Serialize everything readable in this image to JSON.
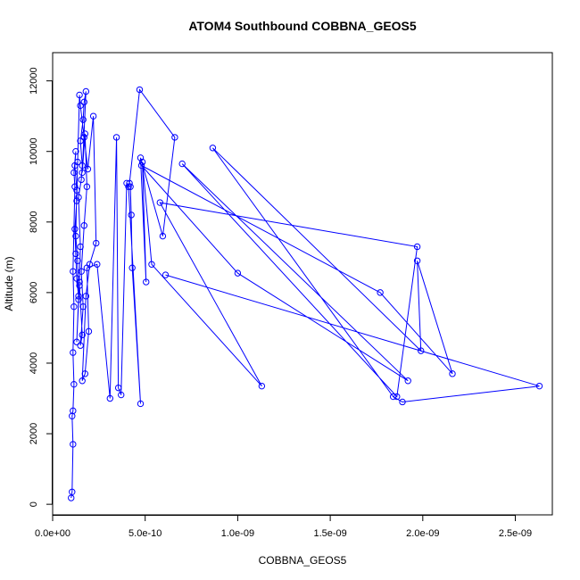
{
  "chart_data": {
    "type": "line",
    "title": "ATOM4 Southbound COBBNA_GEOS5",
    "xlabel": "COBBNA_GEOS5",
    "ylabel": "Altitude (m)",
    "xlim": [
      0,
      2.7e-09
    ],
    "ylim": [
      -300,
      12800
    ],
    "xticks": [
      0,
      5e-10,
      1e-09,
      1.5e-09,
      2e-09,
      2.5e-09
    ],
    "xtick_labels": [
      "0.0e+00",
      "5.0e-10",
      "1.0e-09",
      "1.5e-09",
      "2.0e-09",
      "2.5e-09"
    ],
    "yticks": [
      0,
      2000,
      4000,
      6000,
      8000,
      10000,
      12000
    ],
    "ytick_labels": [
      "0",
      "2000",
      "4000",
      "6000",
      "8000",
      "10000",
      "12000"
    ],
    "grid": false,
    "series_color": "#0000ff",
    "x": [
      1e-10,
      1.05e-10,
      1.1e-10,
      1.05e-10,
      1.1e-10,
      1.15e-10,
      1.1e-10,
      1.15e-10,
      1.1e-10,
      1.2e-10,
      1.15e-10,
      1.25e-10,
      1.2e-10,
      1.3e-10,
      1.25e-10,
      1.35e-10,
      1.4e-10,
      1.3e-10,
      1.45e-10,
      1.5e-10,
      1.4e-10,
      1.55e-10,
      1.6e-10,
      1.5e-10,
      1.65e-10,
      1.7e-10,
      1.8e-10,
      1.6e-10,
      1.75e-10,
      1.85e-10,
      1.7e-10,
      1.55e-10,
      1.65e-10,
      1.5e-10,
      1.6e-10,
      1.45e-10,
      1.4e-10,
      1.3e-10,
      1.25e-10,
      1.2e-10,
      1.3e-10,
      1.35e-10,
      1.45e-10,
      1.5e-10,
      1.7e-10,
      1.9e-10,
      2.2e-10,
      2.35e-10,
      2e-10,
      1.8e-10,
      1.6e-10,
      1.75e-10,
      1.95e-10,
      1.85e-10,
      2.4e-10,
      3.1e-10,
      3.45e-10,
      3.55e-10,
      3.7e-10,
      4e-10,
      4.2e-10,
      4.25e-10,
      4.3e-10,
      4.75e-10,
      4.1e-10,
      4.15e-10,
      4.7e-10,
      6.6e-10,
      5.95e-10,
      4.75e-10,
      5.05e-10,
      4.85e-10,
      5.35e-10,
      1.13e-09,
      5.8e-10,
      1.97e-09,
      1.86e-09,
      7e-10,
      1.92e-09,
      1e-09,
      4.8e-10,
      1.77e-09,
      2.16e-09,
      1.97e-09,
      1.99e-09,
      8.65e-10,
      1.84e-09,
      1.89e-09,
      2.63e-09,
      6.1e-10
    ],
    "y": [
      180,
      350,
      1700,
      2500,
      2650,
      3400,
      4300,
      5600,
      6600,
      9000,
      9400,
      10000,
      9600,
      8900,
      7600,
      6900,
      5800,
      4600,
      6300,
      7300,
      8700,
      9200,
      9600,
      10300,
      10900,
      11400,
      11700,
      9400,
      10500,
      9000,
      7900,
      6600,
      5600,
      4500,
      4800,
      6200,
      5900,
      6400,
      7100,
      7800,
      8600,
      9700,
      11600,
      11300,
      10400,
      9500,
      11000,
      7400,
      6800,
      5900,
      3500,
      3700,
      4900,
      6700,
      6800,
      3000,
      10400,
      3300,
      3100,
      9100,
      9000,
      8200,
      6700,
      2850,
      9000,
      9100,
      11750,
      10400,
      7600,
      9820,
      6300,
      9700,
      6800,
      3350,
      8550,
      7300,
      3050,
      9650,
      3500,
      6550,
      9600,
      6000,
      3700,
      6900,
      4350,
      10100,
      3050,
      2900,
      3350,
      6500
    ]
  }
}
